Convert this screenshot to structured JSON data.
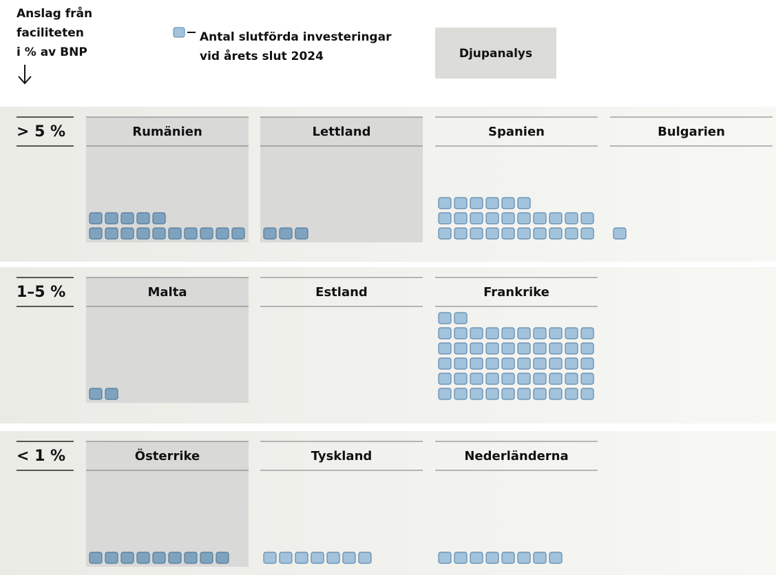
{
  "chart_data": {
    "type": "waffle",
    "title": [
      "Anslag från",
      "faciliteten",
      "i % av BNP"
    ],
    "legend": [
      "Antal slutförda investeringar",
      "vid årets slut 2024"
    ],
    "button": "Djupanalys",
    "per_row": 10,
    "colors": {
      "normal": "#a3c3dc",
      "highlight": "#7fa3bf"
    },
    "groups": [
      {
        "label": "> 5 %",
        "countries": [
          {
            "name": "Rumänien",
            "value": 15,
            "highlight": true
          },
          {
            "name": "Lettland",
            "value": 3,
            "highlight": true
          },
          {
            "name": "Spanien",
            "value": 26,
            "highlight": false
          },
          {
            "name": "Bulgarien",
            "value": 1,
            "highlight": false
          }
        ]
      },
      {
        "label": "1–5 %",
        "countries": [
          {
            "name": "Malta",
            "value": 2,
            "highlight": true
          },
          {
            "name": "Estland",
            "value": 0,
            "highlight": false
          },
          {
            "name": "Frankrike",
            "value": 52,
            "highlight": false
          }
        ]
      },
      {
        "label": "< 1 %",
        "countries": [
          {
            "name": "Österrike",
            "value": 9,
            "highlight": true
          },
          {
            "name": "Tyskland",
            "value": 7,
            "highlight": false
          },
          {
            "name": "Nederländerna",
            "value": 8,
            "highlight": false
          }
        ]
      }
    ]
  }
}
